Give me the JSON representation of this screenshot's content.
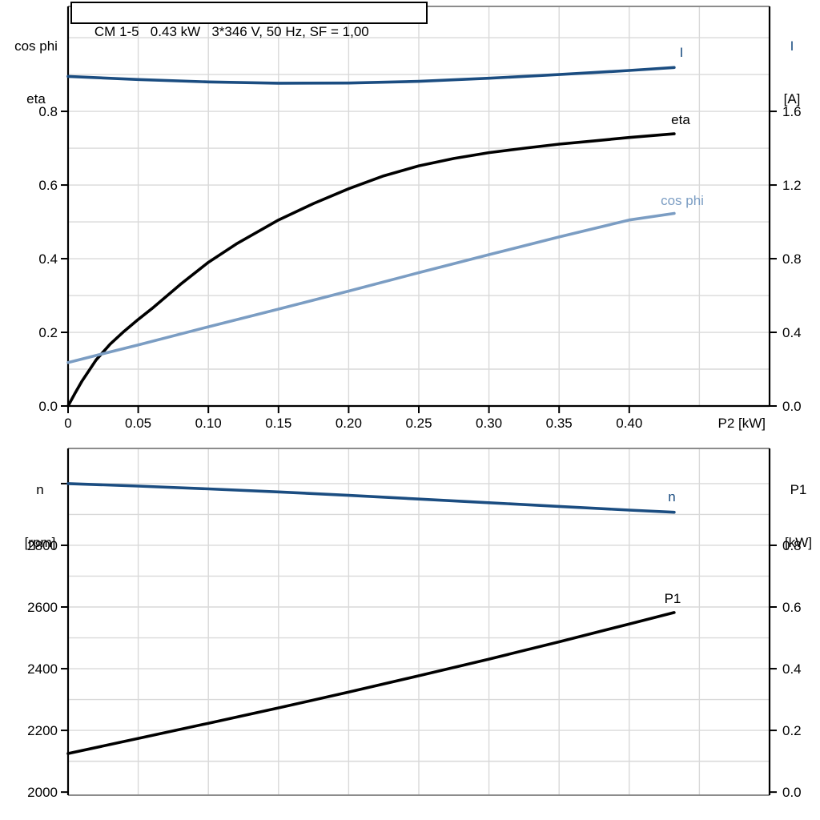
{
  "colors": {
    "curve_dark_blue": "#1B4D81",
    "curve_steel_blue": "#7B9DC3",
    "curve_black": "#000000",
    "grid": "#D9D9D9",
    "border": "#8C8C8C",
    "axis": "#000000"
  },
  "chart_data": [
    {
      "type": "line",
      "title": "CM 1-5   0.43 kW   3*346 V, 50 Hz, SF = 1,00",
      "xlabel": "P2 [kW]",
      "ylabel_left_lines": [
        "cos phi",
        "eta"
      ],
      "ylabel_right_lines": [
        "I",
        "[A]"
      ],
      "xlim": [
        0,
        0.5
      ],
      "ylim_left": [
        0,
        1.085
      ],
      "ylim_right": [
        0,
        2.17
      ],
      "x_ticks": {
        "values": [
          0,
          0.05,
          0.1,
          0.15,
          0.2,
          0.25,
          0.3,
          0.35,
          0.4
        ],
        "labels": [
          "0",
          "0.05",
          "0.10",
          "0.15",
          "0.20",
          "0.25",
          "0.30",
          "0.35",
          "0.40"
        ]
      },
      "left_ticks": {
        "values": [
          0,
          0.2,
          0.4,
          0.6,
          0.8
        ],
        "labels": [
          "0.0",
          "0.2",
          "0.4",
          "0.6",
          "0.8"
        ]
      },
      "right_ticks": {
        "values": [
          0,
          0.4,
          0.8,
          1.2,
          1.6
        ],
        "labels": [
          "0.0",
          "0.4",
          "0.8",
          "1.2",
          "1.6"
        ]
      },
      "grid_x": [
        0.05,
        0.1,
        0.15,
        0.2,
        0.25,
        0.3,
        0.35,
        0.4,
        0.45
      ],
      "grid_y": [
        0.1,
        0.2,
        0.3,
        0.4,
        0.5,
        0.6,
        0.7,
        0.8,
        0.9,
        1.0
      ],
      "series": [
        {
          "name": "I",
          "axis": "right",
          "color": "#1B4D81",
          "x": [
            0,
            0.05,
            0.1,
            0.15,
            0.2,
            0.25,
            0.3,
            0.35,
            0.4,
            0.432
          ],
          "y": [
            1.79,
            1.773,
            1.76,
            1.753,
            1.754,
            1.763,
            1.78,
            1.8,
            1.822,
            1.838
          ]
        },
        {
          "name": "eta",
          "axis": "left",
          "color": "#000000",
          "x": [
            0,
            0.005,
            0.01,
            0.02,
            0.03,
            0.04,
            0.05,
            0.06,
            0.08,
            0.1,
            0.12,
            0.15,
            0.175,
            0.2,
            0.225,
            0.25,
            0.275,
            0.3,
            0.325,
            0.35,
            0.375,
            0.4,
            0.432
          ],
          "y": [
            0,
            0.035,
            0.068,
            0.125,
            0.168,
            0.203,
            0.235,
            0.265,
            0.33,
            0.39,
            0.44,
            0.505,
            0.55,
            0.59,
            0.625,
            0.652,
            0.672,
            0.688,
            0.7,
            0.711,
            0.72,
            0.729,
            0.739
          ]
        },
        {
          "name": "cos phi",
          "axis": "left",
          "color": "#7B9DC3",
          "x": [
            0,
            0.05,
            0.1,
            0.15,
            0.2,
            0.25,
            0.3,
            0.35,
            0.4,
            0.432
          ],
          "y": [
            0.118,
            0.166,
            0.215,
            0.263,
            0.312,
            0.362,
            0.411,
            0.459,
            0.505,
            0.523
          ]
        }
      ]
    },
    {
      "type": "line",
      "title": "",
      "xlabel": "",
      "ylabel_left_lines": [
        "n",
        "[rpm]"
      ],
      "ylabel_right_lines": [
        "P1",
        "[kW]"
      ],
      "xlim": [
        0,
        0.5
      ],
      "ylim_left": [
        1990,
        3114
      ],
      "ylim_right": [
        -0.01,
        1.114
      ],
      "x_ticks": {
        "values": [],
        "labels": []
      },
      "left_ticks": {
        "values": [
          2000,
          2200,
          2400,
          2600,
          2800,
          3000
        ],
        "labels": [
          "2000",
          "2200",
          "2400",
          "2600",
          "2800",
          ""
        ]
      },
      "right_ticks": {
        "values": [
          0,
          0.2,
          0.4,
          0.6,
          0.8
        ],
        "labels": [
          "0.0",
          "0.2",
          "0.4",
          "0.6",
          "0.8"
        ]
      },
      "grid_x": [
        0.05,
        0.1,
        0.15,
        0.2,
        0.25,
        0.3,
        0.35,
        0.4,
        0.45
      ],
      "grid_y": [
        2100,
        2200,
        2300,
        2400,
        2500,
        2600,
        2700,
        2800,
        2900,
        3000
      ],
      "series": [
        {
          "name": "n",
          "axis": "left",
          "color": "#1B4D81",
          "x": [
            0,
            0.05,
            0.1,
            0.15,
            0.2,
            0.25,
            0.3,
            0.35,
            0.4,
            0.432
          ],
          "y": [
            3000,
            2992,
            2983,
            2973,
            2962,
            2950,
            2938,
            2926,
            2914,
            2907
          ]
        },
        {
          "name": "P1",
          "axis": "right",
          "color": "#000000",
          "x": [
            0,
            0.05,
            0.1,
            0.15,
            0.2,
            0.25,
            0.3,
            0.35,
            0.4,
            0.432
          ],
          "y": [
            0.125,
            0.174,
            0.223,
            0.273,
            0.324,
            0.377,
            0.431,
            0.487,
            0.545,
            0.582
          ]
        }
      ]
    }
  ]
}
